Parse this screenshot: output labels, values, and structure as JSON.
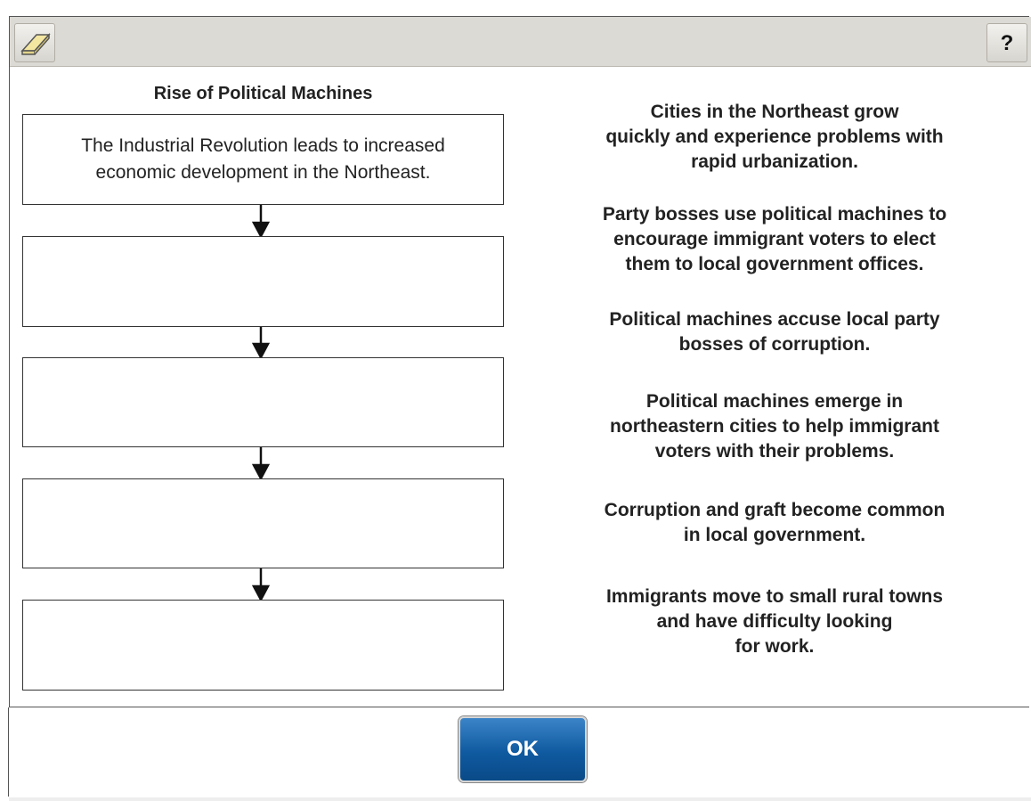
{
  "toolbar": {
    "help": "?"
  },
  "title": "Rise of Political Machines",
  "flow_boxes": [
    [
      "The Industrial Revolution leads to increased",
      "economic development in the Northeast."
    ],
    [],
    [],
    [],
    []
  ],
  "options": [
    [
      "Cities in the Northeast grow",
      "quickly and experience problems with",
      "rapid urbanization."
    ],
    [
      "Party bosses use political machines to",
      "encourage immigrant voters to elect",
      "them to local government offices."
    ],
    [
      "Political machines accuse local party",
      "bosses of corruption."
    ],
    [
      "Political machines emerge in",
      "northeastern cities to help immigrant",
      "voters with their problems."
    ],
    [
      "Corruption and graft become common",
      "in local government."
    ],
    [
      "Immigrants move to small rural towns",
      "and have difficulty looking",
      "for work."
    ]
  ],
  "button": "OK"
}
